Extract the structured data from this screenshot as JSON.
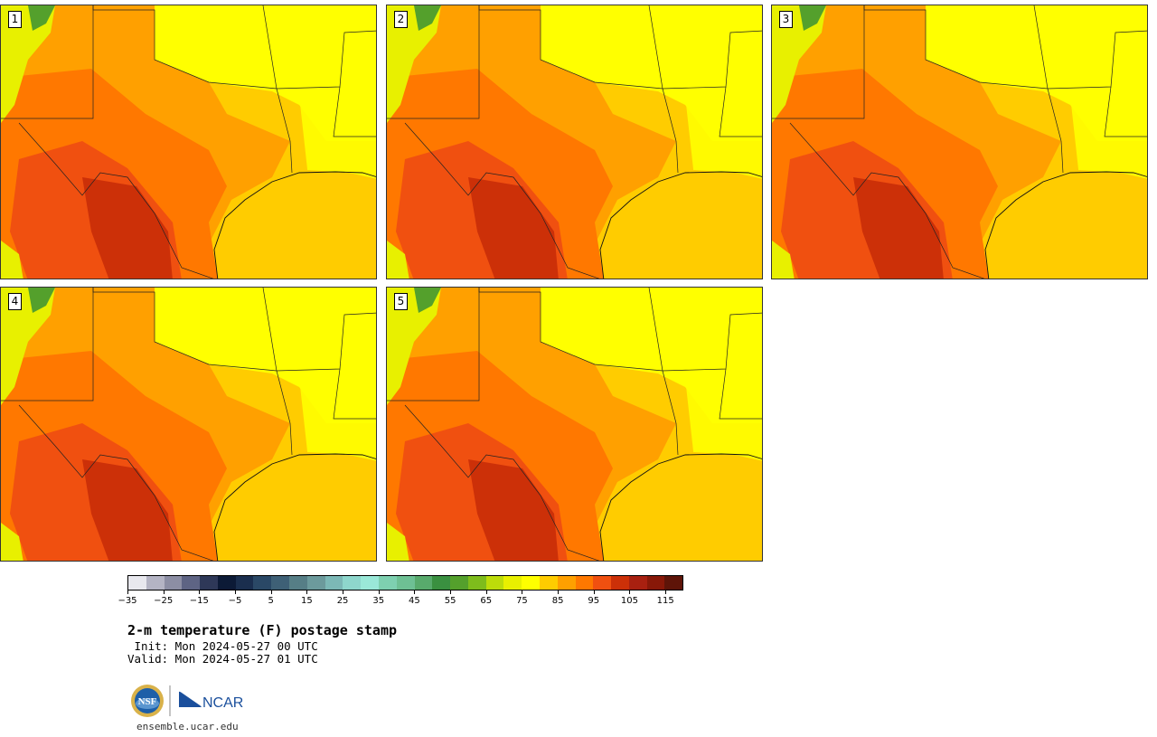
{
  "panels": [
    {
      "label": "1"
    },
    {
      "label": "2"
    },
    {
      "label": "3"
    },
    {
      "label": "4"
    },
    {
      "label": "5"
    }
  ],
  "colorbar": {
    "colors": [
      "#e8e8ee",
      "#b4b4c4",
      "#8c8ea4",
      "#5e6484",
      "#2e3858",
      "#0c1a36",
      "#1a2e4e",
      "#2a4866",
      "#3e6076",
      "#567e86",
      "#6c9a9c",
      "#7cb8b6",
      "#8ed6cc",
      "#9ae8d8",
      "#7ed0b0",
      "#6ec094",
      "#58aa6c",
      "#3a9040",
      "#54a02c",
      "#7ebc1c",
      "#bcdc0a",
      "#e8f000",
      "#ffff00",
      "#ffcc00",
      "#ffa000",
      "#ff7800",
      "#f05010",
      "#cc3008",
      "#a82010",
      "#881808",
      "#5e1408"
    ],
    "tick_labels": [
      "−35",
      "−25",
      "−15",
      "−5",
      "5",
      "15",
      "25",
      "35",
      "45",
      "55",
      "65",
      "75",
      "85",
      "95",
      "105",
      "115"
    ]
  },
  "text": {
    "title": "2-m temperature (F) postage stamp",
    "init": " Init: Mon 2024-05-27 00 UTC",
    "valid": "Valid: Mon 2024-05-27 01 UTC",
    "site": "ensemble.ucar.edu",
    "nsf_logo": "NSF",
    "ncar_logo": "NCAR"
  },
  "icons": {
    "nsf": "nsf-logo-icon",
    "ncar": "ncar-logo-icon"
  }
}
